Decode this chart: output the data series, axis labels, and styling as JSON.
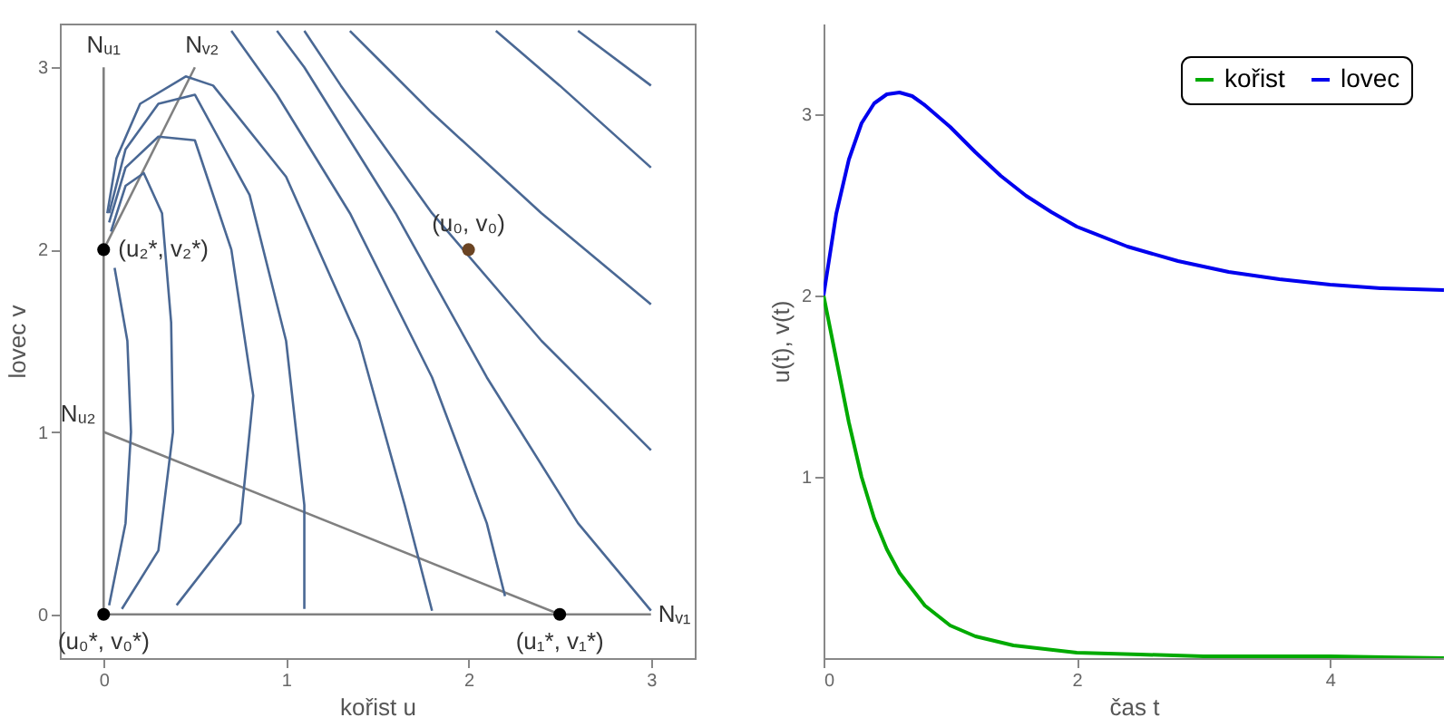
{
  "chart_data": [
    {
      "type": "line",
      "xlabel": "kořist u",
      "ylabel": "lovec v",
      "xlim": [
        -0.24,
        3.24
      ],
      "ylim": [
        -0.24,
        3.24
      ],
      "xticks": [
        0,
        1,
        2,
        3
      ],
      "yticks": [
        0,
        1,
        2,
        3
      ],
      "grid": false,
      "series": [
        {
          "color": "#808080",
          "x": [
            0,
            0
          ],
          "values": [
            0,
            3
          ]
        },
        {
          "color": "#808080",
          "x": [
            0,
            0.5
          ],
          "values": [
            2,
            3
          ]
        },
        {
          "color": "#808080",
          "x": [
            0,
            2.5
          ],
          "values": [
            1,
            0
          ]
        },
        {
          "color": "#808080",
          "x": [
            0,
            3
          ],
          "values": [
            0,
            0
          ]
        },
        {
          "color": "#4a6894",
          "x": [
            0.03,
            0.12,
            0.15,
            0.13,
            0.06
          ],
          "values": [
            0.05,
            0.5,
            1.0,
            1.5,
            1.9
          ]
        },
        {
          "color": "#4a6894",
          "x": [
            0.1,
            0.3,
            0.38,
            0.37,
            0.32,
            0.22,
            0.12,
            0.04
          ],
          "values": [
            0.03,
            0.35,
            1.0,
            1.6,
            2.2,
            2.42,
            2.35,
            2.1
          ]
        },
        {
          "color": "#4a6894",
          "x": [
            0.4,
            0.75,
            0.82,
            0.7,
            0.5,
            0.3,
            0.12,
            0.03
          ],
          "values": [
            0.05,
            0.5,
            1.2,
            2.0,
            2.6,
            2.62,
            2.45,
            2.15
          ]
        },
        {
          "color": "#4a6894",
          "x": [
            1.1,
            1.1,
            1.0,
            0.8,
            0.5,
            0.3,
            0.12,
            0.03
          ],
          "values": [
            0.03,
            0.6,
            1.5,
            2.3,
            2.85,
            2.8,
            2.55,
            2.2
          ]
        },
        {
          "color": "#4a6894",
          "x": [
            1.8,
            1.65,
            1.4,
            1.0,
            0.6,
            0.45,
            0.2,
            0.07,
            0.02
          ],
          "values": [
            0.02,
            0.6,
            1.5,
            2.4,
            2.9,
            2.95,
            2.8,
            2.5,
            2.2
          ]
        },
        {
          "color": "#4a6894",
          "x": [
            2.2,
            2.1,
            1.8,
            1.35,
            0.95,
            0.7
          ],
          "values": [
            0.1,
            0.5,
            1.3,
            2.2,
            2.85,
            3.2
          ]
        },
        {
          "color": "#4a6894",
          "x": [
            3.0,
            2.6,
            2.1,
            1.6,
            1.1,
            0.95
          ],
          "values": [
            0.02,
            0.5,
            1.3,
            2.2,
            3.0,
            3.2
          ]
        },
        {
          "color": "#4a6894",
          "x": [
            3.0,
            2.4,
            1.8,
            1.3,
            1.1
          ],
          "values": [
            0.9,
            1.5,
            2.2,
            2.9,
            3.2
          ]
        },
        {
          "color": "#4a6894",
          "x": [
            3.0,
            2.4,
            1.8,
            1.5,
            1.35
          ],
          "values": [
            1.7,
            2.2,
            2.75,
            3.05,
            3.2
          ]
        },
        {
          "color": "#4a6894",
          "x": [
            3.0,
            2.5,
            2.15
          ],
          "values": [
            2.45,
            2.9,
            3.2
          ]
        },
        {
          "color": "#4a6894",
          "x": [
            3.0,
            2.6
          ],
          "values": [
            2.9,
            3.2
          ]
        },
        {
          "type": "scatter",
          "color": "#000000",
          "x": [
            0,
            2.5,
            0
          ],
          "values": [
            0,
            0,
            2
          ]
        },
        {
          "type": "scatter",
          "color": "#6b4423",
          "x": [
            2
          ],
          "values": [
            2
          ]
        }
      ],
      "annotations": [
        {
          "text": "Nᵤ₁",
          "x": 0,
          "y": 3
        },
        {
          "text": "Nᵥ₂",
          "x": 0.5,
          "y": 3
        },
        {
          "text": "Nᵤ₂",
          "x": 0,
          "y": 1
        },
        {
          "text": "Nᵥ₁",
          "x": 3,
          "y": 0
        },
        {
          "text": "(u₂*, v₂*)",
          "x": 0,
          "y": 2
        },
        {
          "text": "(u₀*, v₀*)",
          "x": 0,
          "y": 0
        },
        {
          "text": "(u₁*, v₁*)",
          "x": 2.5,
          "y": 0
        },
        {
          "text": "(u₀, v₀)",
          "x": 2,
          "y": 2
        }
      ]
    },
    {
      "type": "line",
      "xlabel": "čas t",
      "ylabel": "u(t), v(t)",
      "xlim": [
        0,
        4.9
      ],
      "ylim": [
        0,
        3.5
      ],
      "xticks": [
        0,
        2,
        4
      ],
      "yticks": [
        1,
        2,
        3
      ],
      "grid": false,
      "legend": "top right",
      "series": [
        {
          "name": "kořist",
          "color": "#00aa00",
          "x": [
            0,
            0.1,
            0.2,
            0.3,
            0.4,
            0.5,
            0.6,
            0.8,
            1.0,
            1.2,
            1.5,
            2.0,
            2.5,
            3.0,
            4.0,
            4.9
          ],
          "values": [
            2,
            1.65,
            1.3,
            1.0,
            0.77,
            0.6,
            0.47,
            0.29,
            0.18,
            0.12,
            0.07,
            0.03,
            0.02,
            0.01,
            0.01,
            0
          ]
        },
        {
          "name": "lovec",
          "color": "#0000ee",
          "x": [
            0,
            0.1,
            0.2,
            0.3,
            0.4,
            0.5,
            0.6,
            0.7,
            0.8,
            1.0,
            1.2,
            1.4,
            1.6,
            1.8,
            2.0,
            2.4,
            2.8,
            3.2,
            3.6,
            4.0,
            4.4,
            4.9
          ],
          "values": [
            2,
            2.45,
            2.75,
            2.95,
            3.06,
            3.11,
            3.12,
            3.1,
            3.05,
            2.93,
            2.79,
            2.66,
            2.55,
            2.46,
            2.38,
            2.27,
            2.19,
            2.13,
            2.09,
            2.06,
            2.04,
            2.03
          ]
        }
      ]
    }
  ]
}
